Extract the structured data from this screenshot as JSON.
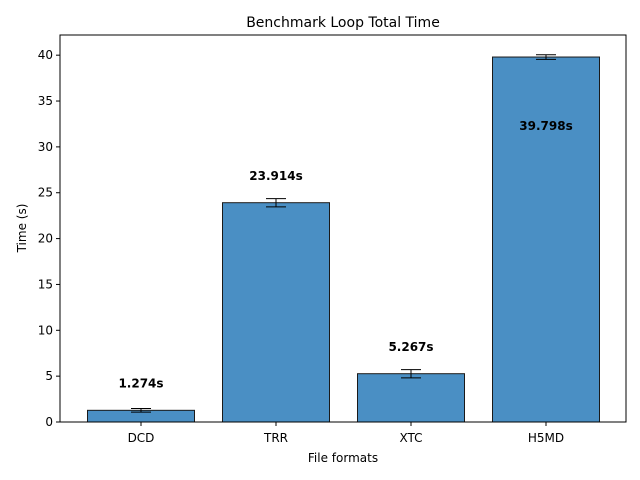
{
  "chart_data": {
    "type": "bar",
    "title": "Benchmark Loop Total Time",
    "xlabel": "File formats",
    "ylabel": "Time (s)",
    "categories": [
      "DCD",
      "TRR",
      "XTC",
      "H5MD"
    ],
    "values": [
      1.274,
      23.914,
      5.267,
      39.798
    ],
    "errors": [
      0.2,
      0.45,
      0.45,
      0.25
    ],
    "data_labels": [
      "1.274s",
      "23.914s",
      "5.267s",
      "39.798s"
    ],
    "ylim": [
      0,
      42.2
    ],
    "yticks": [
      0,
      5,
      10,
      15,
      20,
      25,
      30,
      35,
      40
    ],
    "grid": false,
    "colors": {
      "bar": "#4a8fc4",
      "edge": "#1a1a1a"
    }
  }
}
